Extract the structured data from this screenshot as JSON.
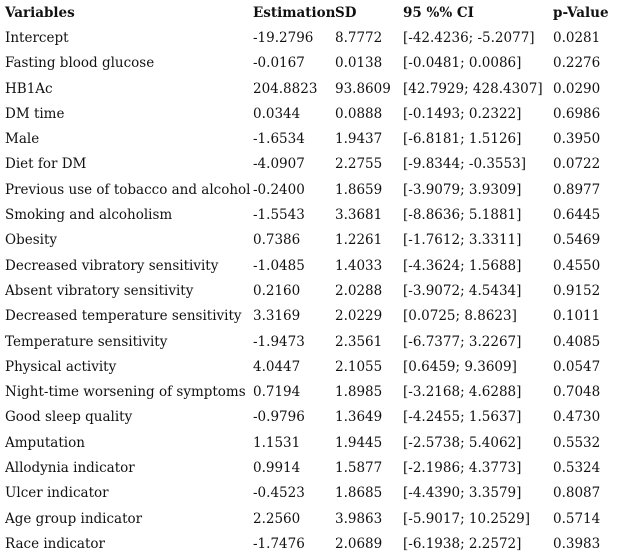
{
  "colors": {
    "background": "#ffffff",
    "text": "#111111"
  },
  "table": {
    "headers": [
      "Variables",
      "Estimation",
      "SD",
      "95 %% CI",
      "p-Value"
    ],
    "rows": [
      {
        "variable": "Intercept",
        "estimation": "-19.2796",
        "sd": "8.7772",
        "ci": "[-42.4236; -5.2077]",
        "p_value": "0.0281"
      },
      {
        "variable": "Fasting blood glucose",
        "estimation": "-0.0167",
        "sd": "0.0138",
        "ci": "[-0.0481; 0.0086]",
        "p_value": "0.2276"
      },
      {
        "variable": "HB1Ac",
        "estimation": "204.8823",
        "sd": "93.8609",
        "ci": "[42.7929; 428.4307]",
        "p_value": "0.0290"
      },
      {
        "variable": "DM time",
        "estimation": "0.0344",
        "sd": "0.0888",
        "ci": "[-0.1493; 0.2322]",
        "p_value": "0.6986"
      },
      {
        "variable": "Male",
        "estimation": "-1.6534",
        "sd": "1.9437",
        "ci": "[-6.8181; 1.5126]",
        "p_value": "0.3950"
      },
      {
        "variable": "Diet for DM",
        "estimation": "-4.0907",
        "sd": "2.2755",
        "ci": "[-9.8344; -0.3553]",
        "p_value": "0.0722"
      },
      {
        "variable": "Previous use of tobacco and alcohol",
        "estimation": "-0.2400",
        "sd": "1.8659",
        "ci": "[-3.9079; 3.9309]",
        "p_value": "0.8977"
      },
      {
        "variable": "Smoking and alcoholism",
        "estimation": "-1.5543",
        "sd": "3.3681",
        "ci": "[-8.8636; 5.1881]",
        "p_value": "0.6445"
      },
      {
        "variable": "Obesity",
        "estimation": "0.7386",
        "sd": "1.2261",
        "ci": "[-1.7612; 3.3311]",
        "p_value": "0.5469"
      },
      {
        "variable": "Decreased vibratory sensitivity",
        "estimation": "-1.0485",
        "sd": "1.4033",
        "ci": "[-4.3624; 1.5688]",
        "p_value": "0.4550"
      },
      {
        "variable": "Absent vibratory sensitivity",
        "estimation": "0.2160",
        "sd": "2.0288",
        "ci": "[-3.9072; 4.5434]",
        "p_value": "0.9152"
      },
      {
        "variable": "Decreased temperature sensitivity",
        "estimation": "3.3169",
        "sd": "2.0229",
        "ci": "[0.0725; 8.8623]",
        "p_value": "0.1011"
      },
      {
        "variable": "Temperature sensitivity",
        "estimation": "-1.9473",
        "sd": "2.3561",
        "ci": "[-6.7377; 3.2267]",
        "p_value": "0.4085"
      },
      {
        "variable": "Physical activity",
        "estimation": "4.0447",
        "sd": "2.1055",
        "ci": "[0.6459; 9.3609]",
        "p_value": "0.0547"
      },
      {
        "variable": "Night-time worsening of symptoms",
        "estimation": "0.7194",
        "sd": "1.8985",
        "ci": "[-3.2168; 4.6288]",
        "p_value": "0.7048"
      },
      {
        "variable": "Good sleep quality",
        "estimation": "-0.9796",
        "sd": "1.3649",
        "ci": "[-4.2455; 1.5637]",
        "p_value": "0.4730"
      },
      {
        "variable": "Amputation",
        "estimation": "1.1531",
        "sd": "1.9445",
        "ci": "[-2.5738; 5.4062]",
        "p_value": "0.5532"
      },
      {
        "variable": "Allodynia indicator",
        "estimation": "0.9914",
        "sd": "1.5877",
        "ci": "[-2.1986; 4.3773]",
        "p_value": "0.5324"
      },
      {
        "variable": "Ulcer indicator",
        "estimation": "-0.4523",
        "sd": "1.8685",
        "ci": "[-4.4390; 3.3579]",
        "p_value": "0.8087"
      },
      {
        "variable": "Age group indicator",
        "estimation": "2.2560",
        "sd": "3.9863",
        "ci": "[-5.9017; 10.2529]",
        "p_value": "0.5714"
      },
      {
        "variable": "Race indicator",
        "estimation": "-1.7476",
        "sd": "2.0689",
        "ci": "[-6.1938; 2.2572]",
        "p_value": "0.3983"
      }
    ]
  }
}
